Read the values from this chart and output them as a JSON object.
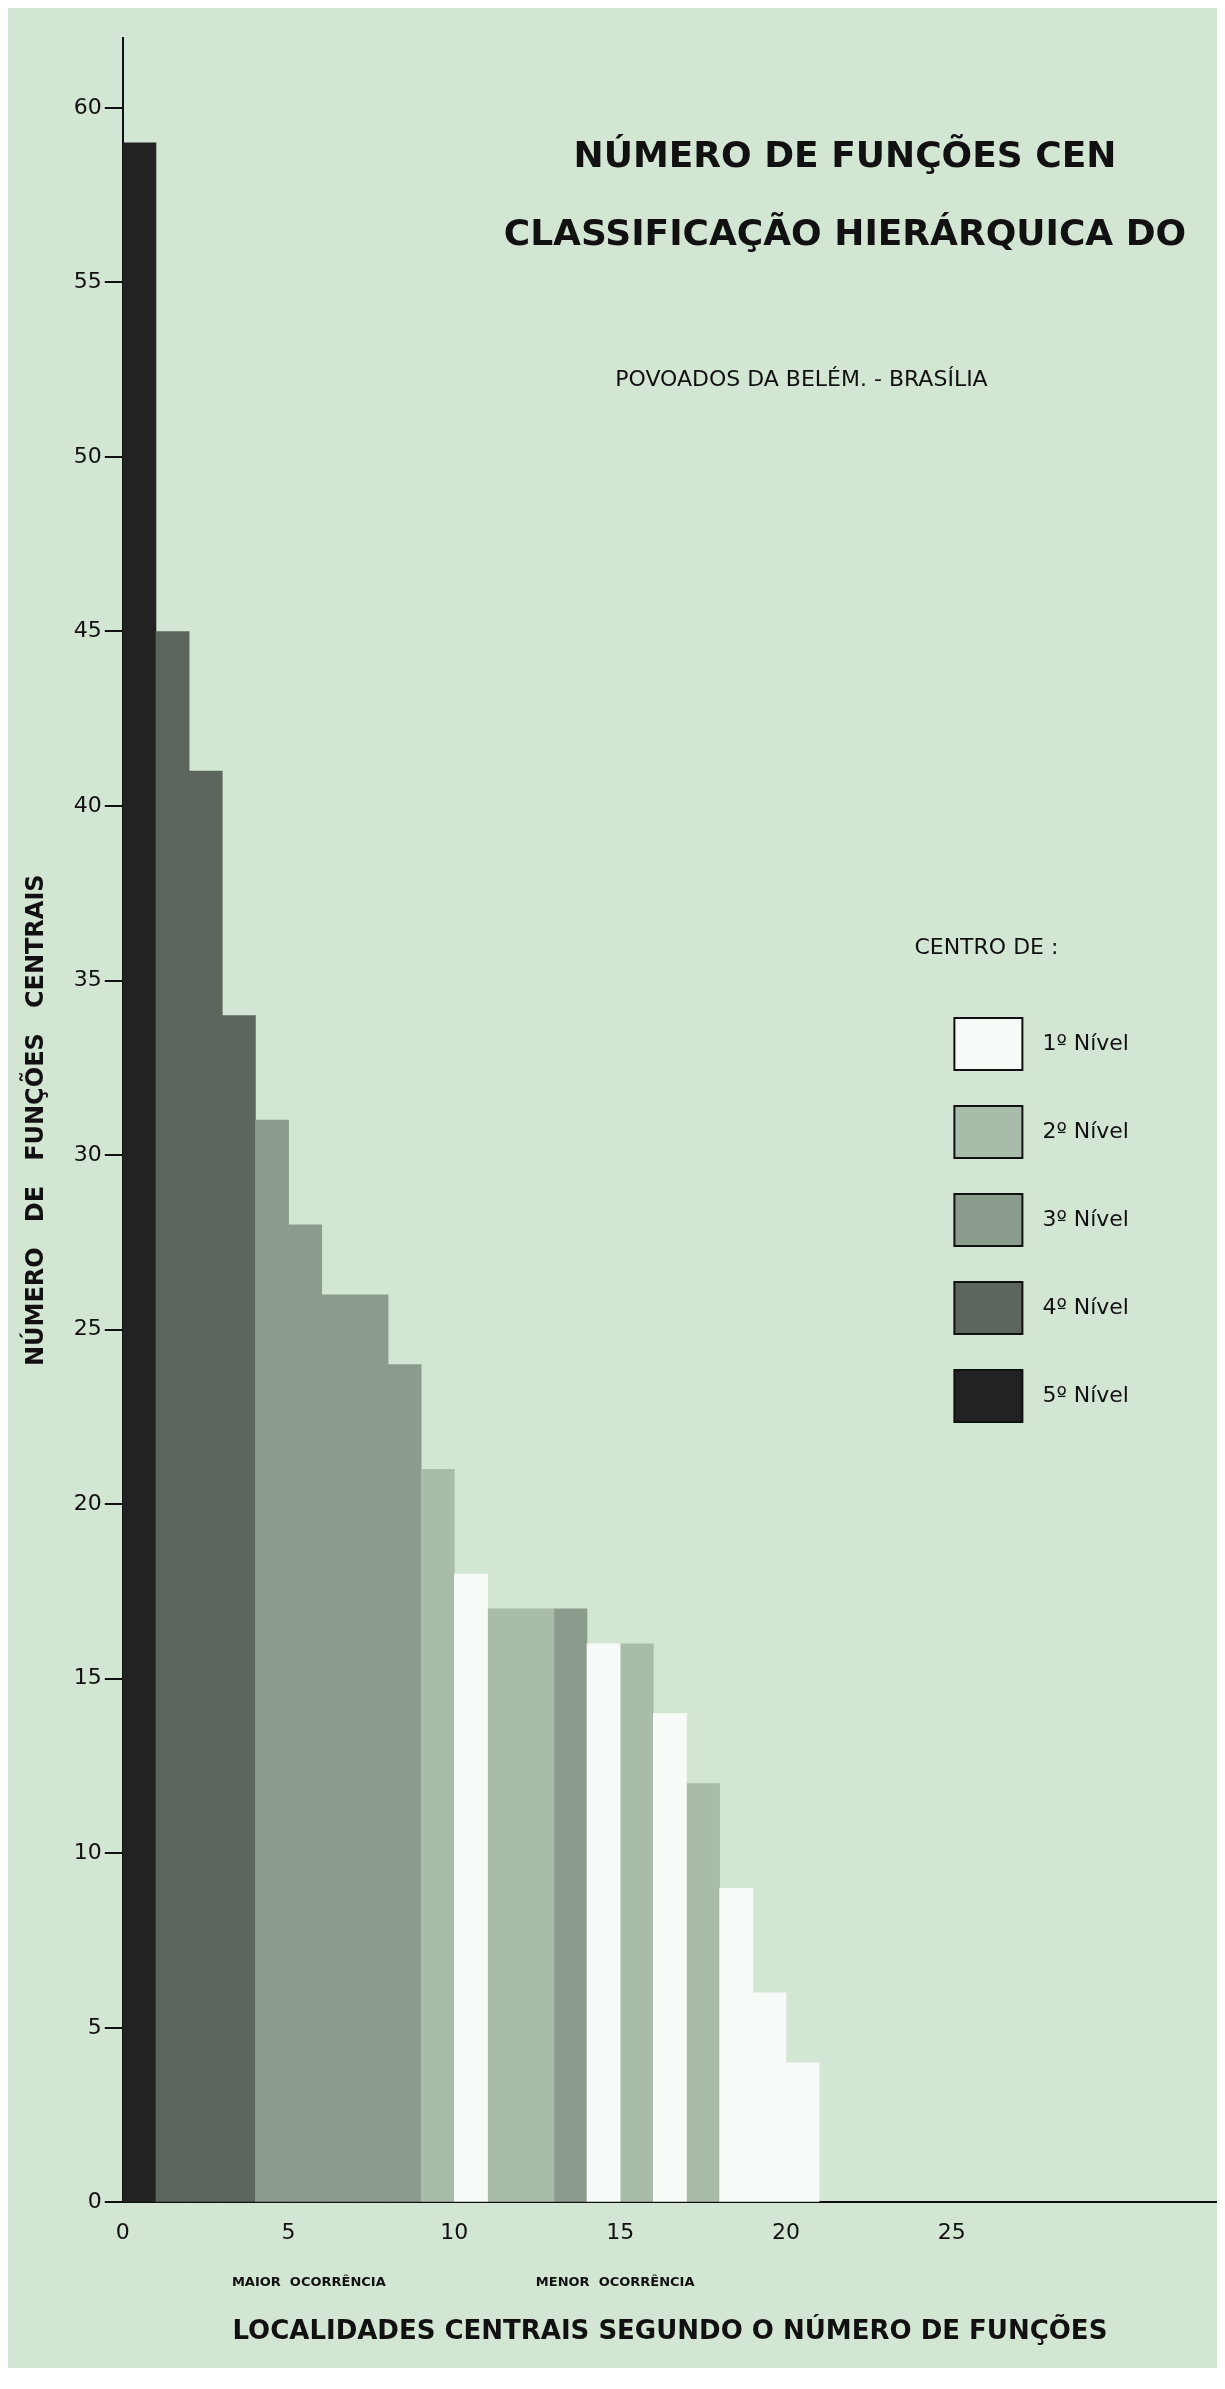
{
  "chart_data": {
    "type": "histogram",
    "title": "NÚMERO DE FUNÇÕES CEN\nCLASSIFICAÇÃO HIERÁRQUICA DO",
    "subtitle": "POVOADOS DA BELÉM. - BRASÍLIA",
    "xlabel": "LOCALIDADES CENTRAIS SEGUNDO O NÚMERO DE FUNÇÕES",
    "ylabel": "NÚMERO   DE   FUNÇÕES   CENTRAIS",
    "legend_title": "CENTRO DE :",
    "annotations": [
      "MAIOR  OCORRÊNCIA",
      "MENOR  OCORRÊNCIA"
    ],
    "bins": [
      0,
      1,
      2,
      3,
      4,
      5,
      6,
      7,
      8,
      9,
      10,
      11,
      12,
      13,
      14,
      15,
      16,
      17,
      18,
      19,
      20,
      21
    ],
    "series": [
      {
        "name": "1º Nível",
        "color": "#f7fbf7",
        "values": [
          null,
          null,
          null,
          null,
          null,
          null,
          null,
          null,
          null,
          null,
          18,
          null,
          null,
          null,
          16,
          null,
          14,
          null,
          9,
          6,
          4
        ]
      },
      {
        "name": "2º Nível",
        "color": "#a9bca9",
        "values": [
          null,
          null,
          null,
          null,
          null,
          null,
          null,
          null,
          null,
          21,
          null,
          17,
          17,
          null,
          null,
          16,
          null,
          12,
          null,
          null,
          null
        ]
      },
      {
        "name": "3º Nível",
        "color": "#8c9c8c",
        "values": [
          null,
          null,
          null,
          null,
          31,
          28,
          26,
          26,
          24,
          null,
          null,
          null,
          null,
          17,
          null,
          null,
          null,
          null,
          null,
          null,
          null
        ]
      },
      {
        "name": "4º Nível",
        "color": "#5c665c",
        "values": [
          null,
          45,
          41,
          34,
          null,
          null,
          null,
          null,
          null,
          null,
          null,
          null,
          null,
          null,
          null,
          null,
          null,
          null,
          null,
          null,
          null
        ]
      },
      {
        "name": "5º Nível",
        "color": "#222222",
        "values": [
          59,
          null,
          null,
          null,
          null,
          null,
          null,
          null,
          null,
          null,
          null,
          null,
          null,
          null,
          null,
          null,
          null,
          null,
          null,
          null,
          null
        ]
      }
    ],
    "xlim": [
      0,
      33
    ],
    "xticks": [
      0,
      5,
      10,
      15,
      20,
      25
    ],
    "ylim": [
      0,
      62
    ],
    "yticks": [
      0,
      5,
      10,
      15,
      20,
      25,
      30,
      35,
      40,
      45,
      50,
      55,
      60
    ],
    "grid": false,
    "legend": "right"
  }
}
